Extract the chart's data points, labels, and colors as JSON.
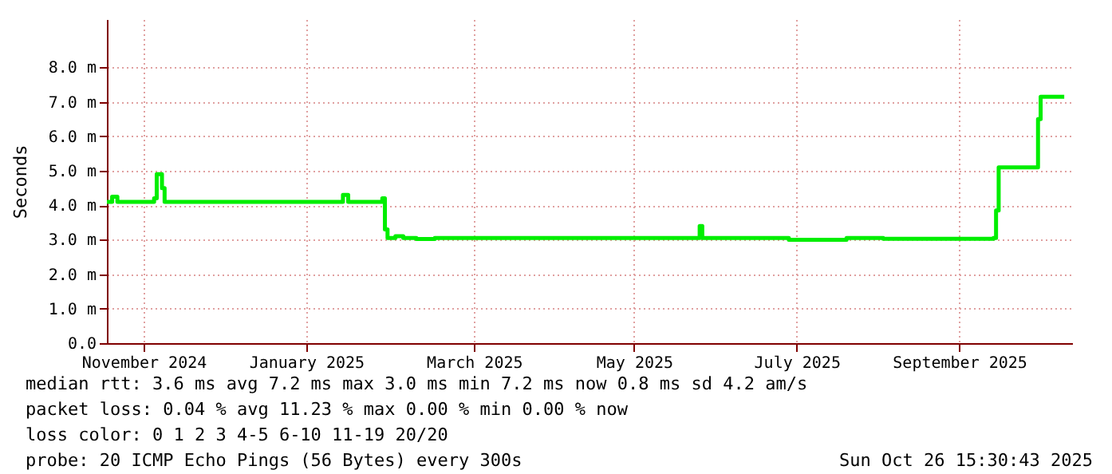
{
  "chart_data": {
    "type": "step",
    "ylabel": "Seconds",
    "x": [
      "2024-10-26",
      "2024-10-28",
      "2024-10-30",
      "2024-11-12",
      "2024-11-13",
      "2024-11-14",
      "2024-11-16",
      "2024-11-17",
      "2025-01-23",
      "2025-01-24",
      "2025-01-26",
      "2025-02-08",
      "2025-02-09",
      "2025-02-10",
      "2025-02-13",
      "2025-02-16",
      "2025-02-21",
      "2025-02-28",
      "2025-06-08",
      "2025-06-09",
      "2025-06-10",
      "2025-07-13",
      "2025-08-04",
      "2025-08-18",
      "2025-09-29",
      "2025-09-30",
      "2025-10-01",
      "2025-10-15",
      "2025-10-16",
      "2025-10-17",
      "2025-10-26"
    ],
    "series": [
      {
        "color": "#00ee00",
        "values": [
          4.1,
          4.25,
          4.1,
          4.1,
          4.2,
          4.9,
          4.5,
          4.1,
          4.1,
          4.3,
          4.1,
          4.2,
          3.3,
          3.05,
          3.1,
          3.05,
          3.02,
          3.05,
          3.05,
          3.4,
          3.05,
          3.0,
          3.05,
          3.03,
          3.05,
          3.85,
          5.1,
          5.1,
          6.5,
          7.15,
          7.15
        ]
      }
    ],
    "xlim": [
      "2024-10-26",
      "2025-10-29"
    ],
    "xticks": [
      {
        "value": "2024-11-09",
        "label": "November 2024"
      },
      {
        "value": "2025-01-10",
        "label": "January 2025"
      },
      {
        "value": "2025-03-15",
        "label": "March 2025"
      },
      {
        "value": "2025-05-15",
        "label": "May 2025"
      },
      {
        "value": "2025-07-16",
        "label": "July 2025"
      },
      {
        "value": "2025-09-16",
        "label": "September 2025"
      }
    ],
    "ylim": [
      0,
      9.4
    ],
    "yticks": [
      {
        "value": 0,
        "label": "0.0"
      },
      {
        "value": 1,
        "label": "1.0 m"
      },
      {
        "value": 2,
        "label": "2.0 m"
      },
      {
        "value": 3,
        "label": "3.0 m"
      },
      {
        "value": 4,
        "label": "4.0 m"
      },
      {
        "value": 5,
        "label": "5.0 m"
      },
      {
        "value": 6,
        "label": "6.0 m"
      },
      {
        "value": 7,
        "label": "7.0 m"
      },
      {
        "value": 8,
        "label": "8.0 m"
      }
    ],
    "grid": true,
    "annotations": [
      "median rtt:  3.6 ms avg  7.2 ms max  3.0 ms min  7.2 ms now  0.8 ms sd  4.2   am/s",
      "packet loss: 0.04 % avg  11.23 % max  0.00 % min  0.00 % now",
      "loss color:  0  1  2  3  4-5  6-10  11-19  20/20",
      "probe:       20 ICMP Echo Pings (56 Bytes) every 300s",
      "Sun Oct 26 15:30:43 2025"
    ]
  }
}
